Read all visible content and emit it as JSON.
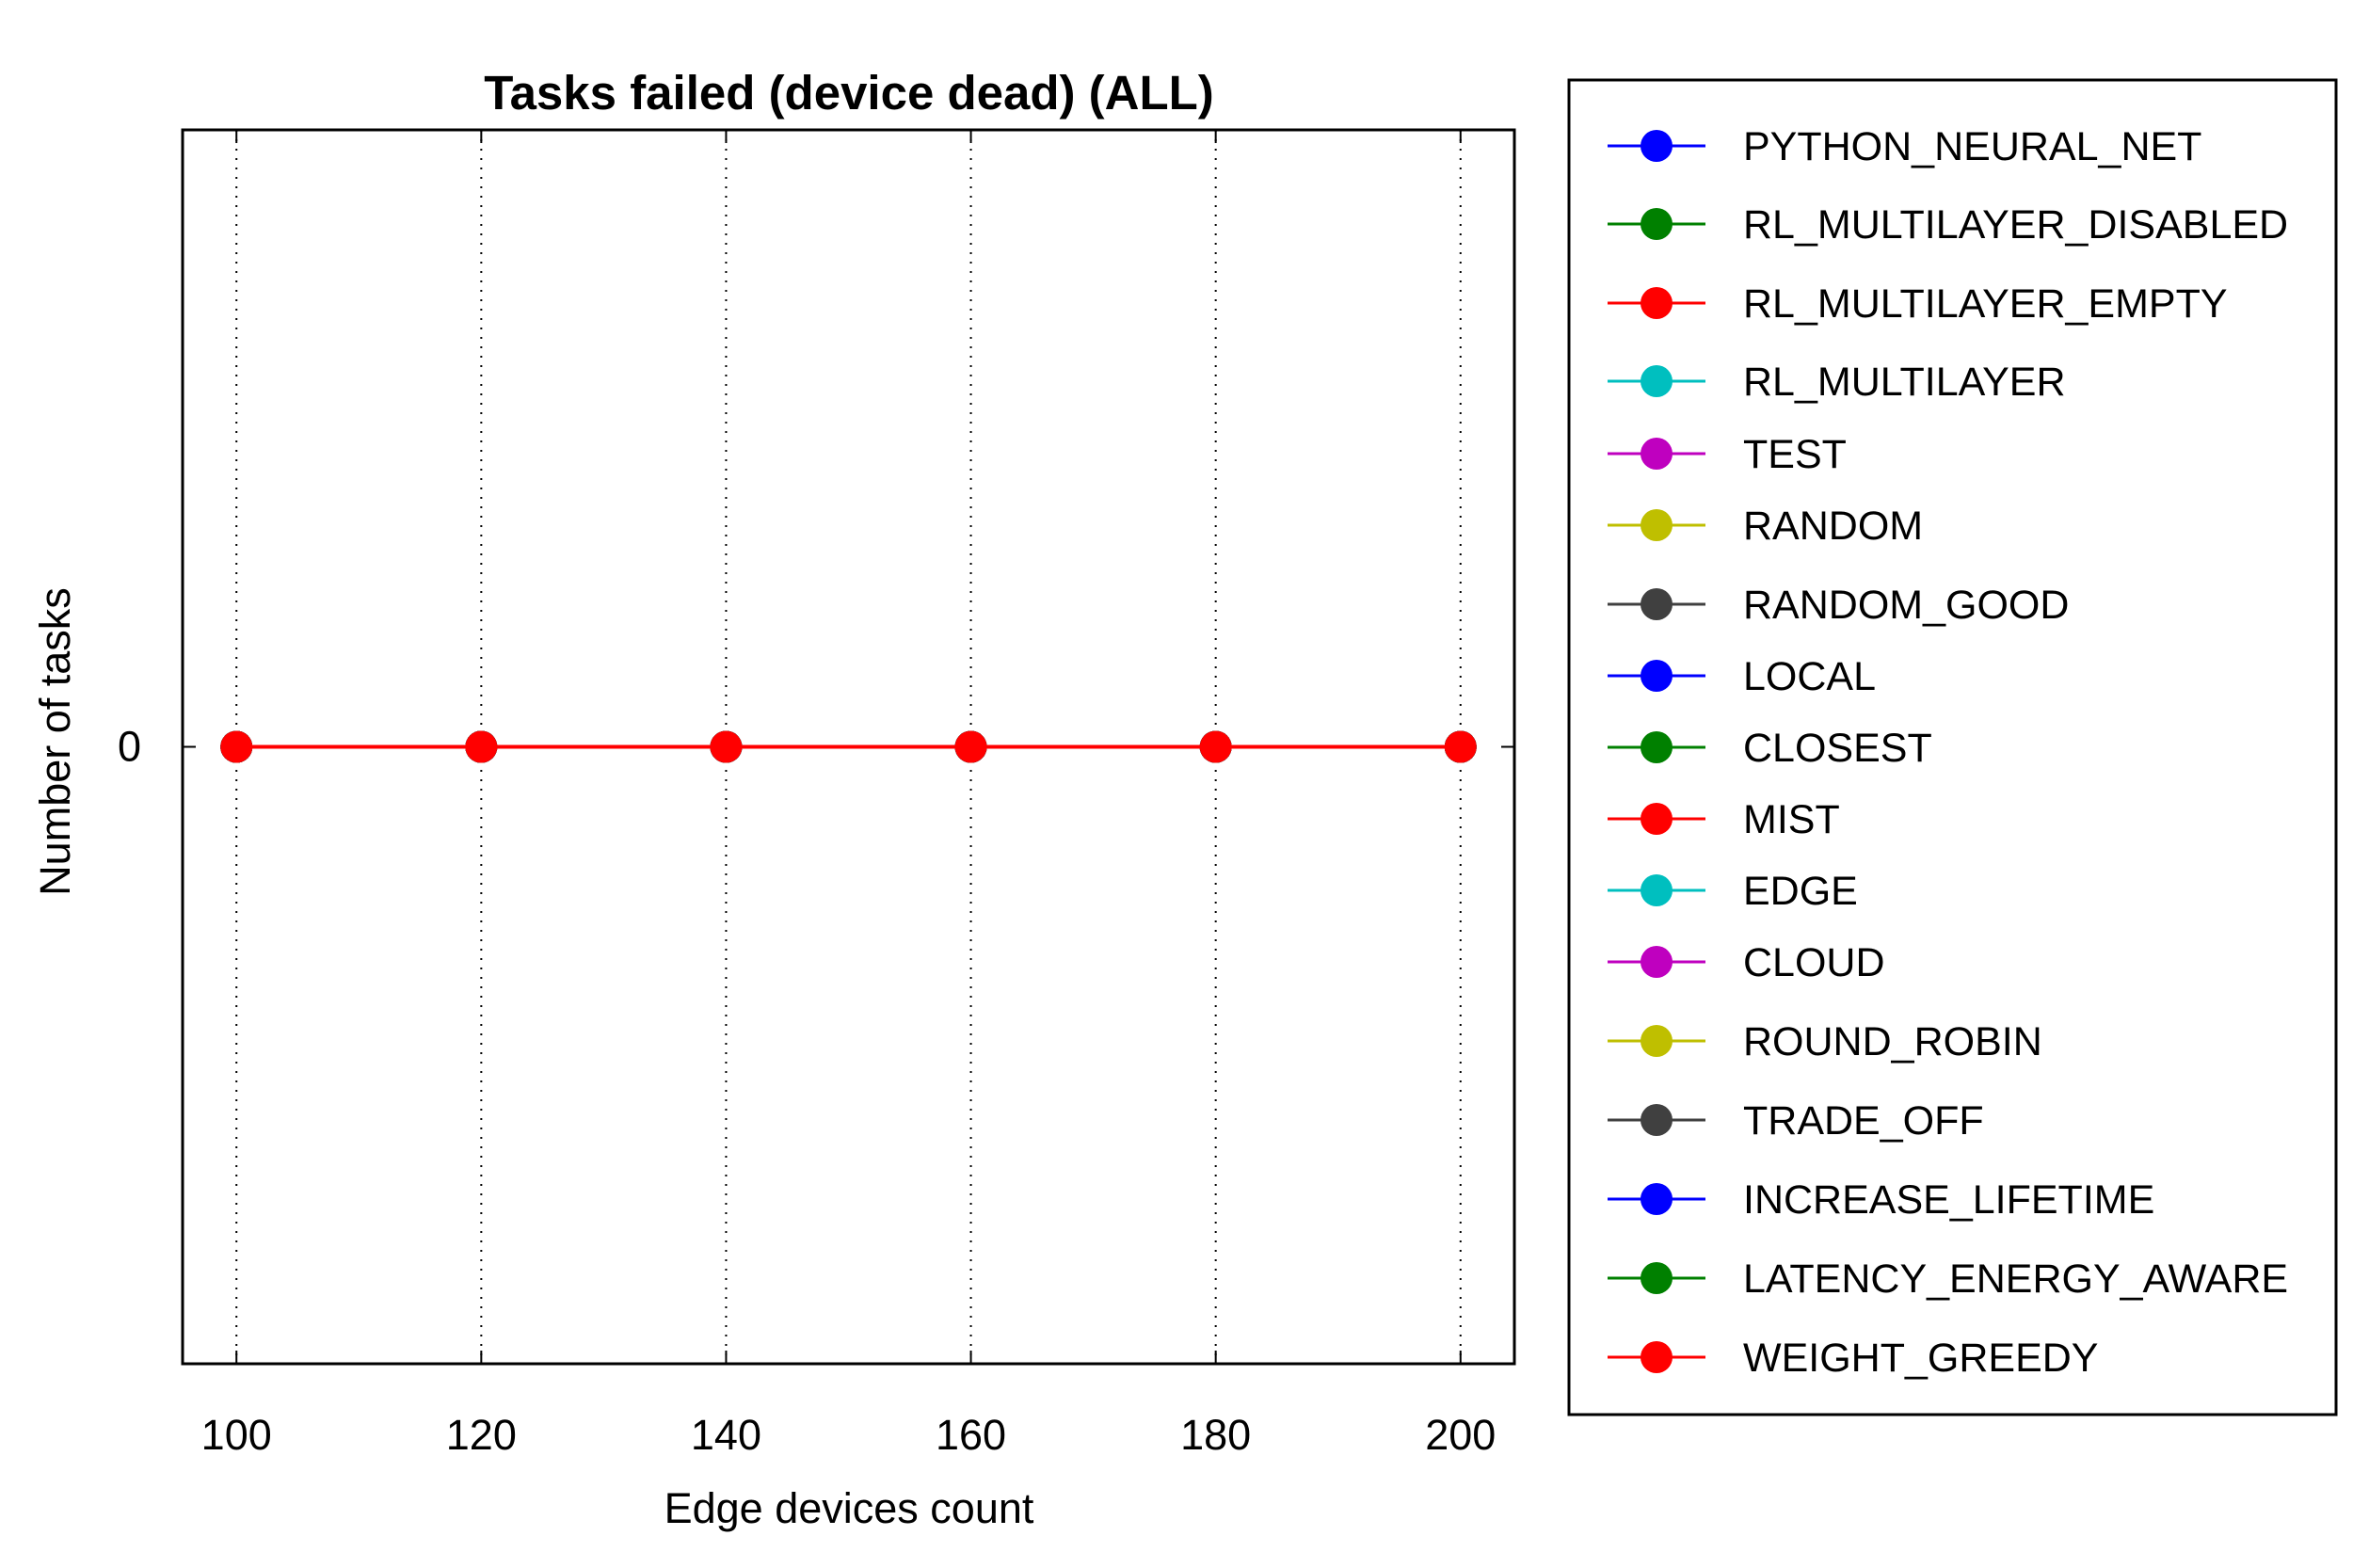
{
  "chart_data": {
    "type": "line",
    "title": "Tasks failed (device dead) (ALL)",
    "xlabel": "Edge devices count",
    "ylabel": "Number of tasks",
    "x": [
      100,
      120,
      140,
      160,
      180,
      200
    ],
    "x_ticks": [
      "100",
      "120",
      "140",
      "160",
      "180",
      "200"
    ],
    "y_ticks": [
      "0"
    ],
    "xlim": [
      95.6,
      204.4
    ],
    "ylim": [
      -1,
      1
    ],
    "grid": "vertical dotted",
    "legend_position": "outside-right",
    "series": [
      {
        "name": "PYTHON_NEURAL_NET",
        "color": "#0000ff",
        "values": [
          0,
          0,
          0,
          0,
          0,
          0
        ]
      },
      {
        "name": "RL_MULTILAYER_DISABLED",
        "color": "#008000",
        "values": [
          0,
          0,
          0,
          0,
          0,
          0
        ]
      },
      {
        "name": "RL_MULTILAYER_EMPTY",
        "color": "#ff0000",
        "values": [
          0,
          0,
          0,
          0,
          0,
          0
        ]
      },
      {
        "name": "RL_MULTILAYER",
        "color": "#00bfbf",
        "values": [
          0,
          0,
          0,
          0,
          0,
          0
        ]
      },
      {
        "name": "TEST",
        "color": "#bf00bf",
        "values": [
          0,
          0,
          0,
          0,
          0,
          0
        ]
      },
      {
        "name": "RANDOM",
        "color": "#bfbf00",
        "values": [
          0,
          0,
          0,
          0,
          0,
          0
        ]
      },
      {
        "name": "RANDOM_GOOD",
        "color": "#404040",
        "values": [
          0,
          0,
          0,
          0,
          0,
          0
        ]
      },
      {
        "name": "LOCAL",
        "color": "#0000ff",
        "values": [
          0,
          0,
          0,
          0,
          0,
          0
        ]
      },
      {
        "name": "CLOSEST",
        "color": "#008000",
        "values": [
          0,
          0,
          0,
          0,
          0,
          0
        ]
      },
      {
        "name": "MIST",
        "color": "#ff0000",
        "values": [
          0,
          0,
          0,
          0,
          0,
          0
        ]
      },
      {
        "name": "EDGE",
        "color": "#00bfbf",
        "values": [
          0,
          0,
          0,
          0,
          0,
          0
        ]
      },
      {
        "name": "CLOUD",
        "color": "#bf00bf",
        "values": [
          0,
          0,
          0,
          0,
          0,
          0
        ]
      },
      {
        "name": "ROUND_ROBIN",
        "color": "#bfbf00",
        "values": [
          0,
          0,
          0,
          0,
          0,
          0
        ]
      },
      {
        "name": "TRADE_OFF",
        "color": "#404040",
        "values": [
          0,
          0,
          0,
          0,
          0,
          0
        ]
      },
      {
        "name": "INCREASE_LIFETIME",
        "color": "#0000ff",
        "values": [
          0,
          0,
          0,
          0,
          0,
          0
        ]
      },
      {
        "name": "LATENCY_ENERGY_AWARE",
        "color": "#008000",
        "values": [
          0,
          0,
          0,
          0,
          0,
          0
        ]
      },
      {
        "name": "WEIGHT_GREEDY",
        "color": "#ff0000",
        "values": [
          0,
          0,
          0,
          0,
          0,
          0
        ]
      }
    ]
  }
}
